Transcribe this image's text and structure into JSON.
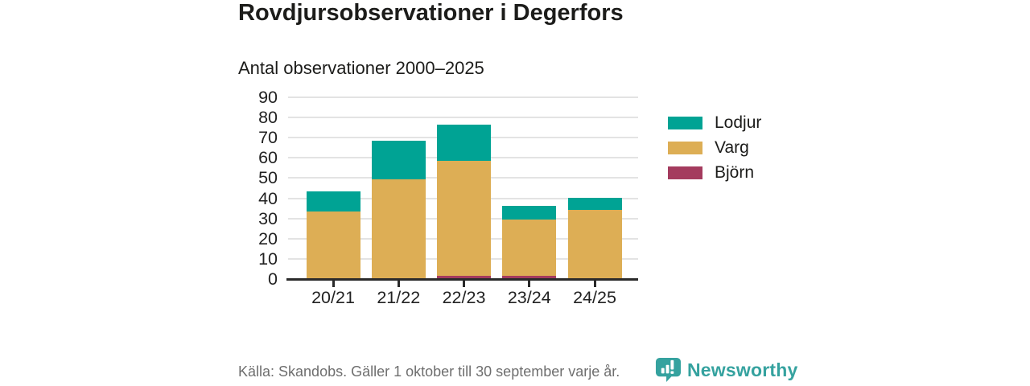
{
  "header": {
    "title": "Rovdjursobservationer i Degerfors",
    "subtitle": "Antal observationer 2000–2025"
  },
  "chart_data": {
    "type": "bar",
    "stacked": true,
    "title": "Rovdjursobservationer i Degerfors",
    "subtitle": "Antal observationer 2000–2025",
    "categories": [
      "20/21",
      "21/22",
      "22/23",
      "23/24",
      "24/25"
    ],
    "series": [
      {
        "name": "Björn",
        "color": "#a43b5e",
        "values": [
          0,
          0,
          1,
          1,
          0
        ]
      },
      {
        "name": "Varg",
        "color": "#ddae55",
        "values": [
          33,
          49,
          57,
          28,
          34
        ]
      },
      {
        "name": "Lodjur",
        "color": "#00a394",
        "values": [
          10,
          19,
          18,
          7,
          6
        ]
      }
    ],
    "ylim": [
      0,
      90
    ],
    "yticks": [
      0,
      10,
      20,
      30,
      40,
      50,
      60,
      70,
      80,
      90
    ],
    "grid": true,
    "legend_position": "right",
    "legend_top_to_bottom": [
      "Lodjur",
      "Varg",
      "Björn"
    ]
  },
  "footer": {
    "source": "Källa: Skandobs. Gäller 1 oktober till 30 september varje år.",
    "brand": "Newsworthy"
  },
  "colors": {
    "lodjur": "#00a394",
    "varg": "#ddae55",
    "bjorn": "#a43b5e",
    "brand_teal": "#35a29f",
    "text": "#1c1c1a",
    "muted_text": "#6e6e6e",
    "gridline": "#e3e3e3",
    "axis": "#2a2a2a"
  }
}
